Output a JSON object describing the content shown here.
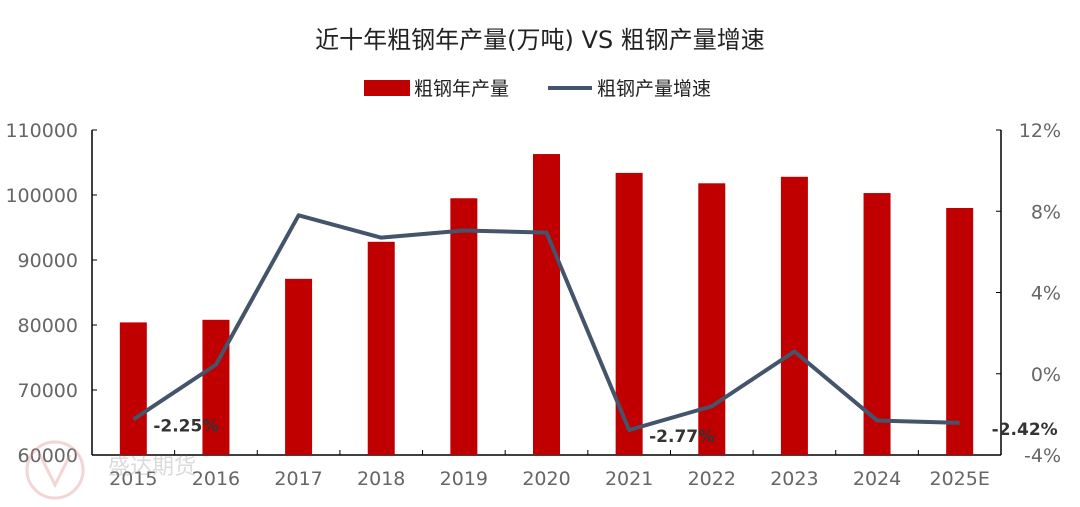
{
  "chart_data": {
    "type": "bar+line",
    "title": "近十年粗钢年产量(万吨) VS 粗钢产量增速",
    "categories": [
      "2015",
      "2016",
      "2017",
      "2018",
      "2019",
      "2020",
      "2021",
      "2022",
      "2023",
      "2024",
      "2025E"
    ],
    "series": [
      {
        "name": "粗钢年产量",
        "type": "bar",
        "axis": "left",
        "color": "#C00000",
        "values": [
          80400,
          80800,
          87100,
          92800,
          99500,
          106300,
          103400,
          101800,
          102800,
          100300,
          98000
        ]
      },
      {
        "name": "粗钢产量增速",
        "type": "line",
        "axis": "right",
        "color": "#44546A",
        "values": [
          -2.25,
          0.45,
          7.8,
          6.7,
          7.05,
          6.95,
          -2.77,
          -1.6,
          1.1,
          -2.3,
          -2.42
        ]
      }
    ],
    "data_labels": [
      {
        "category": "2015",
        "text": "-2.25%"
      },
      {
        "category": "2021",
        "text": "-2.77%"
      },
      {
        "category": "2025E",
        "text": "-2.42%"
      }
    ],
    "left_axis": {
      "ylim": [
        60000,
        110000
      ],
      "ticks": [
        "60000",
        "70000",
        "80000",
        "90000",
        "100000",
        "110000"
      ]
    },
    "right_axis": {
      "ylim": [
        -4,
        12
      ],
      "ticks": [
        "-4%",
        "0%",
        "4%",
        "8%",
        "12%"
      ]
    },
    "legend": "top",
    "grid": false
  },
  "watermark": "盛达期货"
}
